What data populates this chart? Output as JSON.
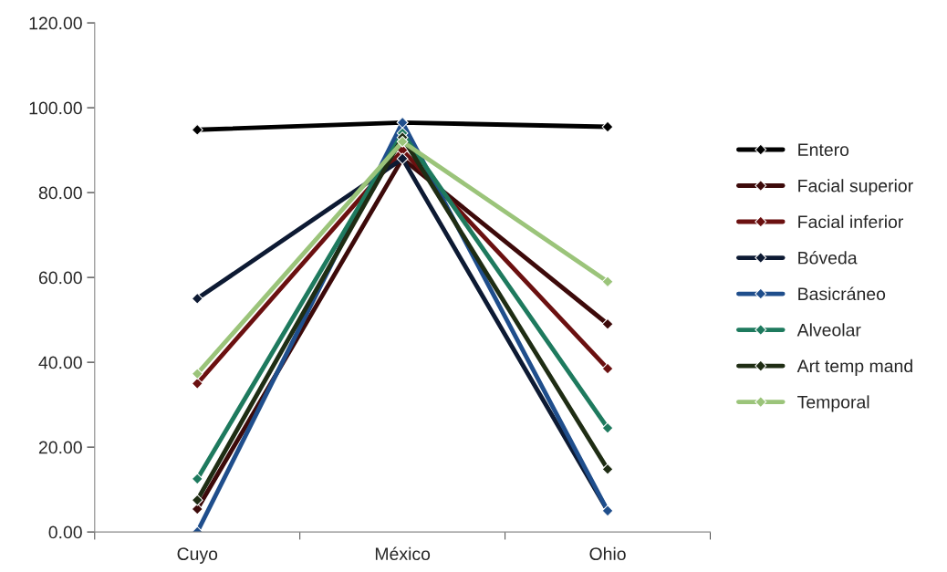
{
  "chart_data": {
    "type": "line",
    "categories": [
      "Cuyo",
      "México",
      "Ohio"
    ],
    "series": [
      {
        "name": "Entero",
        "color": "#000000",
        "values": [
          94.8,
          96.5,
          95.5
        ]
      },
      {
        "name": "Facial superior",
        "color": "#3d0a0a",
        "values": [
          5.4,
          88,
          49
        ]
      },
      {
        "name": "Facial inferior",
        "color": "#6b1010",
        "values": [
          35,
          90,
          38.5
        ]
      },
      {
        "name": "Bóveda",
        "color": "#0d1a33",
        "values": [
          55,
          88,
          5
        ]
      },
      {
        "name": "Basicráneo",
        "color": "#1f4e8c",
        "values": [
          0,
          96.5,
          5
        ]
      },
      {
        "name": "Alveolar",
        "color": "#1e7a5e",
        "values": [
          12.5,
          94,
          24.5
        ]
      },
      {
        "name": "Art temp mand",
        "color": "#1f2d14",
        "values": [
          7.5,
          93,
          14.8
        ]
      },
      {
        "name": "Temporal",
        "color": "#9bc47a",
        "values": [
          37.3,
          92,
          59
        ]
      }
    ],
    "ylim": [
      0,
      120
    ],
    "yticks": [
      {
        "value": 0,
        "label": "0.00"
      },
      {
        "value": 20,
        "label": "20.00"
      },
      {
        "value": 40,
        "label": "40.00"
      },
      {
        "value": 60,
        "label": "60.00"
      },
      {
        "value": 80,
        "label": "80.00"
      },
      {
        "value": 100,
        "label": "100.00"
      },
      {
        "value": 120,
        "label": "120.00"
      }
    ],
    "marker": "diamond",
    "line_style": "solid",
    "legend": "right",
    "grid": false
  }
}
